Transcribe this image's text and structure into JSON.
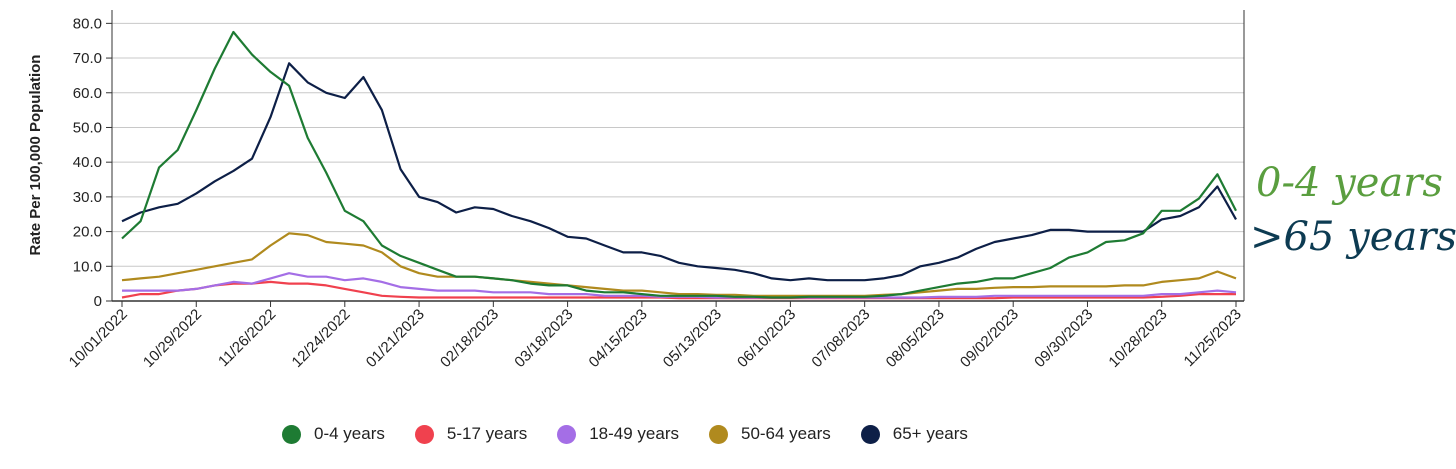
{
  "chart_data": {
    "type": "line",
    "ylabel": "Rate Per 100,000 Population",
    "ylim": [
      0,
      85
    ],
    "yticks": [
      "0",
      "10.0",
      "20.0",
      "30.0",
      "40.0",
      "50.0",
      "60.0",
      "70.0",
      "80.0"
    ],
    "x_tick_labels": [
      "10/01/2022",
      "10/29/2022",
      "11/26/2022",
      "12/24/2022",
      "01/21/2023",
      "02/18/2023",
      "03/18/2023",
      "04/15/2023",
      "05/13/2023",
      "06/10/2023",
      "07/08/2023",
      "08/05/2023",
      "09/02/2023",
      "09/30/2023",
      "10/28/2023",
      "11/25/2023"
    ],
    "x_start": "10/01/2022",
    "x_interval": "weekly",
    "grid": "horizontal",
    "legend_position": "bottom",
    "series": [
      {
        "name": "0-4 years",
        "color": "#1e7b33",
        "values": [
          18,
          23,
          38.5,
          43.5,
          55,
          67,
          77.5,
          71,
          66,
          62,
          47,
          37,
          26,
          23,
          16,
          13,
          11,
          9,
          7,
          7,
          6.5,
          6,
          5,
          4.5,
          4.5,
          3,
          2.5,
          2.5,
          2,
          1.5,
          1.5,
          1.5,
          1.5,
          1.2,
          1.2,
          1,
          1,
          1.2,
          1.2,
          1.2,
          1.2,
          1.5,
          2,
          3,
          4,
          5,
          5.5,
          6.5,
          6.5,
          8,
          9.5,
          12.5,
          14,
          17,
          17.5,
          19.5,
          26,
          26,
          29.5,
          36.5,
          26
        ]
      },
      {
        "name": "5-17 years",
        "color": "#f0414e",
        "values": [
          1,
          2,
          2,
          3,
          3.5,
          4.5,
          5,
          5,
          5.5,
          5,
          5,
          4.5,
          3.5,
          2.5,
          1.5,
          1.2,
          1,
          1,
          1,
          1,
          1,
          1,
          1,
          1,
          1,
          1,
          1,
          1,
          1,
          1,
          0.8,
          0.8,
          0.8,
          0.8,
          0.8,
          0.8,
          0.8,
          0.8,
          0.8,
          0.8,
          0.8,
          0.8,
          0.8,
          0.8,
          0.8,
          0.8,
          0.8,
          0.8,
          1,
          1,
          1,
          1,
          1,
          1,
          1,
          1,
          1.2,
          1.5,
          2,
          2,
          2
        ]
      },
      {
        "name": "18-49 years",
        "color": "#a46ee6",
        "values": [
          3,
          3,
          3,
          3,
          3.5,
          4.5,
          5.5,
          5,
          6.5,
          8,
          7,
          7,
          6,
          6.5,
          5.5,
          4,
          3.5,
          3,
          3,
          3,
          2.5,
          2.5,
          2.5,
          2,
          2,
          2,
          1.5,
          1.5,
          1.5,
          1.2,
          1.2,
          1.2,
          1,
          1,
          1,
          1,
          1,
          1,
          1,
          1,
          1,
          1,
          1,
          1,
          1.2,
          1.2,
          1.2,
          1.5,
          1.5,
          1.5,
          1.5,
          1.5,
          1.5,
          1.5,
          1.5,
          1.5,
          2,
          2,
          2.5,
          3,
          2.5
        ]
      },
      {
        "name": "50-64 years",
        "color": "#b08a1e",
        "values": [
          6,
          6.5,
          7,
          8,
          9,
          10,
          11,
          12,
          16,
          19.5,
          19,
          17,
          16.5,
          16,
          14,
          10,
          8,
          7,
          7,
          7,
          6.5,
          6,
          5.5,
          5,
          4.5,
          4,
          3.5,
          3,
          3,
          2.5,
          2,
          2,
          1.8,
          1.8,
          1.5,
          1.5,
          1.5,
          1.5,
          1.5,
          1.5,
          1.5,
          1.8,
          2,
          2.5,
          3,
          3.5,
          3.5,
          3.8,
          4,
          4,
          4.2,
          4.2,
          4.2,
          4.2,
          4.5,
          4.5,
          5.5,
          6,
          6.5,
          8.5,
          6.5
        ]
      },
      {
        "name": "65+ years",
        "color": "#0d1f47",
        "values": [
          23,
          25.5,
          27,
          28,
          31,
          34.5,
          37.5,
          41,
          53,
          68.5,
          63,
          60,
          58.5,
          64.5,
          55,
          38,
          30,
          28.5,
          25.5,
          27,
          26.5,
          24.5,
          23,
          21,
          18.5,
          18,
          16,
          14,
          14,
          13,
          11,
          10,
          9.5,
          9,
          8,
          6.5,
          6,
          6.5,
          6,
          6,
          6,
          6.5,
          7.5,
          10,
          11,
          12.5,
          15,
          17,
          18,
          19,
          20.5,
          20.5,
          20,
          20,
          20,
          20,
          23.5,
          24.5,
          27,
          33,
          23.5
        ]
      }
    ],
    "annotations": [
      {
        "text": "0-4 years",
        "color": "#5a9e3f"
      },
      {
        "text": ">65 years",
        "color": "#0d3b52"
      }
    ]
  }
}
